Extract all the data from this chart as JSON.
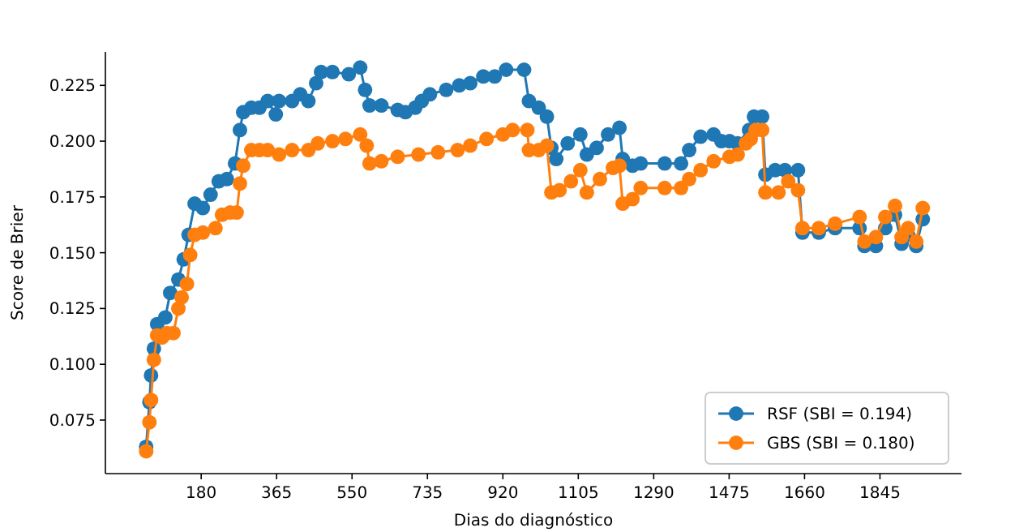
{
  "chart_data": {
    "type": "line",
    "xlabel": "Dias do diagnóstico",
    "ylabel": "Score de Brier",
    "xlim": [
      -55,
      2045
    ],
    "xticks": [
      180,
      365,
      550,
      735,
      920,
      1105,
      1290,
      1475,
      1660,
      1845
    ],
    "ylim": [
      0.051,
      0.24
    ],
    "yticks": [
      0.075,
      {
        "value": 0.1,
        "label": "0.100"
      },
      0.125,
      {
        "value": 0.15,
        "label": "0.150"
      },
      0.175,
      {
        "value": 0.2,
        "label": "0.200"
      },
      0.225
    ],
    "marker": "circle",
    "legend": "bottom right",
    "grid": false,
    "series": [
      {
        "name": "RSF (SBI = 0.194)",
        "color": "#1f77b4",
        "x": [
          45,
          53,
          57,
          64,
          72,
          92,
          104,
          124,
          137,
          149,
          164,
          184,
          203,
          223,
          243,
          263,
          275,
          283,
          303,
          323,
          343,
          363,
          371,
          403,
          423,
          443,
          462,
          474,
          502,
          542,
          570,
          582,
          593,
          622,
          662,
          681,
          705,
          721,
          741,
          781,
          813,
          840,
          872,
          900,
          928,
          972,
          984,
          1008,
          1028,
          1039,
          1051,
          1079,
          1110,
          1126,
          1150,
          1178,
          1206,
          1214,
          1238,
          1258,
          1317,
          1357,
          1377,
          1405,
          1437,
          1456,
          1476,
          1496,
          1524,
          1536,
          1556,
          1564,
          1588,
          1612,
          1644,
          1655,
          1695,
          1735,
          1795,
          1807,
          1835,
          1858,
          1882,
          1898,
          1914,
          1934,
          1950
        ],
        "values": [
          0.063,
          0.083,
          0.095,
          0.107,
          0.118,
          0.121,
          0.132,
          0.138,
          0.147,
          0.158,
          0.172,
          0.17,
          0.176,
          0.182,
          0.183,
          0.19,
          0.205,
          0.213,
          0.215,
          0.215,
          0.218,
          0.212,
          0.218,
          0.218,
          0.221,
          0.218,
          0.226,
          0.231,
          0.231,
          0.23,
          0.233,
          0.223,
          0.216,
          0.216,
          0.214,
          0.213,
          0.215,
          0.218,
          0.221,
          0.223,
          0.225,
          0.226,
          0.229,
          0.229,
          0.232,
          0.232,
          0.218,
          0.215,
          0.211,
          0.197,
          0.192,
          0.199,
          0.203,
          0.194,
          0.197,
          0.203,
          0.206,
          0.192,
          0.189,
          0.19,
          0.19,
          0.19,
          0.196,
          0.202,
          0.203,
          0.2,
          0.2,
          0.199,
          0.205,
          0.211,
          0.211,
          0.185,
          0.187,
          0.187,
          0.187,
          0.159,
          0.159,
          0.161,
          0.161,
          0.153,
          0.153,
          0.161,
          0.167,
          0.154,
          0.158,
          0.153,
          0.165
        ]
      },
      {
        "name": "GBS (SBI = 0.180)",
        "color": "#ff7f0e",
        "x": [
          45,
          53,
          57,
          64,
          72,
          84,
          96,
          112,
          124,
          132,
          145,
          153,
          164,
          184,
          215,
          231,
          251,
          267,
          275,
          283,
          303,
          323,
          343,
          371,
          403,
          443,
          466,
          502,
          534,
          570,
          586,
          593,
          622,
          662,
          713,
          761,
          809,
          840,
          880,
          920,
          944,
          980,
          984,
          1008,
          1028,
          1039,
          1059,
          1087,
          1110,
          1126,
          1158,
          1190,
          1206,
          1214,
          1238,
          1258,
          1317,
          1357,
          1377,
          1405,
          1437,
          1476,
          1496,
          1516,
          1528,
          1540,
          1556,
          1564,
          1596,
          1620,
          1644,
          1655,
          1695,
          1735,
          1795,
          1807,
          1835,
          1858,
          1882,
          1898,
          1914,
          1934,
          1950
        ],
        "values": [
          0.061,
          0.074,
          0.084,
          0.102,
          0.113,
          0.112,
          0.114,
          0.114,
          0.125,
          0.13,
          0.136,
          0.149,
          0.158,
          0.159,
          0.161,
          0.167,
          0.168,
          0.168,
          0.181,
          0.189,
          0.196,
          0.196,
          0.196,
          0.194,
          0.196,
          0.196,
          0.199,
          0.2,
          0.201,
          0.203,
          0.198,
          0.19,
          0.191,
          0.193,
          0.194,
          0.195,
          0.196,
          0.198,
          0.201,
          0.203,
          0.205,
          0.205,
          0.196,
          0.196,
          0.198,
          0.177,
          0.178,
          0.182,
          0.187,
          0.177,
          0.183,
          0.188,
          0.189,
          0.172,
          0.174,
          0.179,
          0.179,
          0.179,
          0.183,
          0.187,
          0.191,
          0.193,
          0.194,
          0.199,
          0.201,
          0.205,
          0.205,
          0.177,
          0.177,
          0.182,
          0.178,
          0.161,
          0.161,
          0.163,
          0.166,
          0.155,
          0.157,
          0.166,
          0.171,
          0.157,
          0.161,
          0.155,
          0.17
        ]
      }
    ]
  }
}
